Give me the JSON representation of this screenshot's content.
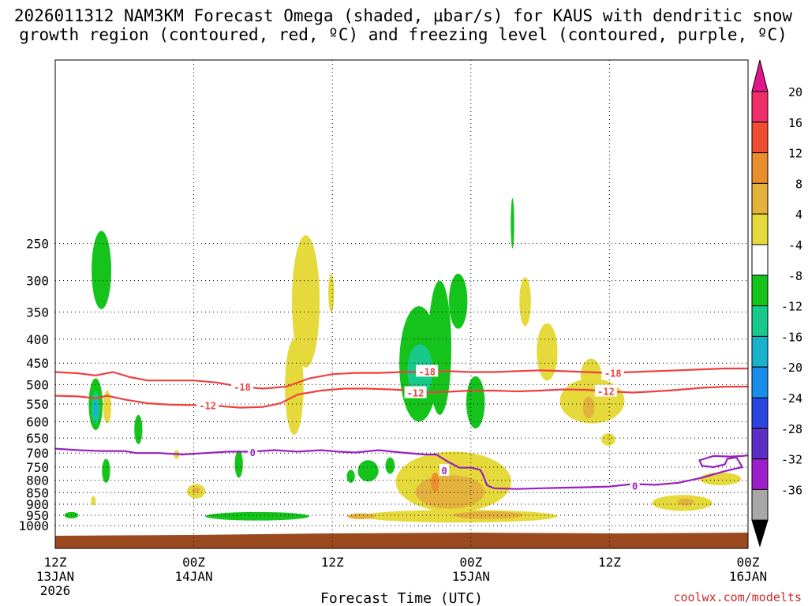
{
  "chart_data": {
    "type": "heatmap",
    "title": {
      "line1": "2026011312 NAM3KM Forecast Omega (shaded, μbar/s) for KAUS with dendritic snow",
      "line2": "growth region (contoured, red, ºC) and freezing level (contoured, purple, ºC)"
    },
    "xlabel": "Forecast Time (UTC)",
    "ylabel": "",
    "y_axis": {
      "scale": "pressure (hPa), inverted",
      "ticks": [
        250,
        300,
        350,
        400,
        450,
        500,
        550,
        600,
        650,
        700,
        750,
        800,
        850,
        900,
        950,
        1000
      ]
    },
    "x_axis": {
      "ticks": [
        {
          "hours": 0,
          "l1": "12Z",
          "l2": "13JAN",
          "l3": "2026"
        },
        {
          "hours": 12,
          "l1": "00Z",
          "l2": "14JAN",
          "l3": ""
        },
        {
          "hours": 24,
          "l1": "12Z",
          "l2": "",
          "l3": ""
        },
        {
          "hours": 36,
          "l1": "00Z",
          "l2": "15JAN",
          "l3": ""
        },
        {
          "hours": 48,
          "l1": "12Z",
          "l2": "",
          "l3": ""
        },
        {
          "hours": 60,
          "l1": "00Z",
          "l2": "16JAN",
          "l3": ""
        }
      ]
    },
    "colorbar": {
      "ticks": [
        "20",
        "16",
        "12",
        "8",
        "4",
        "-4",
        "-8",
        "-12",
        "-16",
        "-20",
        "-24",
        "-28",
        "-32",
        "-36"
      ],
      "bins": [
        {
          "color": "#ef2f6a"
        },
        {
          "color": "#f04e32"
        },
        {
          "color": "#ea8d2c"
        },
        {
          "color": "#e4b23c"
        },
        {
          "color": "#e5d93b"
        },
        {
          "color": "#ffffff"
        },
        {
          "color": "#14c41a"
        },
        {
          "color": "#17c98a"
        },
        {
          "color": "#17b3cc"
        },
        {
          "color": "#1a8de8"
        },
        {
          "color": "#2b45e0"
        },
        {
          "color": "#5b2fc4"
        },
        {
          "color": "#9d1fcc"
        },
        {
          "color": "#a8a8a8"
        }
      ],
      "top_arrow": "#e0178a",
      "bottom_arrow": "#000000"
    },
    "omega_regions": [
      {
        "level": "-4 to -8",
        "color": "#14c41a",
        "cx": 4.0,
        "cy": 290,
        "rx": 0.85,
        "ry": 55
      },
      {
        "level": "-4 to -8",
        "color": "#14c41a",
        "cx": 3.5,
        "cy": 555,
        "rx": 0.6,
        "ry": 70
      },
      {
        "level": "-8 to -12",
        "color": "#17c98a",
        "cx": 3.5,
        "cy": 562,
        "rx": 0.35,
        "ry": 45
      },
      {
        "level": "-12 to -16",
        "color": "#17b3cc",
        "cx": 3.5,
        "cy": 565,
        "rx": 0.2,
        "ry": 25
      },
      {
        "level": "-4 to -8",
        "color": "#14c41a",
        "cx": 4.4,
        "cy": 765,
        "rx": 0.35,
        "ry": 45
      },
      {
        "level": "-4 to -8",
        "color": "#14c41a",
        "cx": 1.4,
        "cy": 950,
        "rx": 0.6,
        "ry": 15
      },
      {
        "level": "-4 to -8",
        "color": "#14c41a",
        "cx": 7.2,
        "cy": 625,
        "rx": 0.35,
        "ry": 45
      },
      {
        "level": "-4 to -8",
        "color": "#14c41a",
        "cx": 15.9,
        "cy": 740,
        "rx": 0.35,
        "ry": 50
      },
      {
        "level": "-4 to -8",
        "color": "#14c41a",
        "cx": 17.5,
        "cy": 955,
        "rx": 4.5,
        "ry": 20
      },
      {
        "level": "-4 to -8",
        "color": "#14c41a",
        "cx": 25.6,
        "cy": 785,
        "rx": 0.35,
        "ry": 25
      },
      {
        "level": "-4 to -8",
        "color": "#14c41a",
        "cx": 27.1,
        "cy": 765,
        "rx": 0.9,
        "ry": 40
      },
      {
        "level": "-4 to -8",
        "color": "#14c41a",
        "cx": 29.0,
        "cy": 745,
        "rx": 0.4,
        "ry": 30
      },
      {
        "level": "-4 to -8",
        "color": "#14c41a",
        "cx": 31.5,
        "cy": 470,
        "rx": 1.7,
        "ry": 130
      },
      {
        "level": "-4 to -8",
        "color": "#14c41a",
        "cx": 33.3,
        "cy": 440,
        "rx": 1.0,
        "ry": 140
      },
      {
        "level": "-8 to -12",
        "color": "#17c98a",
        "cx": 31.6,
        "cy": 470,
        "rx": 1.1,
        "ry": 60
      },
      {
        "level": "-4 to -8",
        "color": "#14c41a",
        "cx": 34.9,
        "cy": 335,
        "rx": 0.8,
        "ry": 45
      },
      {
        "level": "-4 to -8",
        "color": "#14c41a",
        "cx": 36.4,
        "cy": 550,
        "rx": 0.8,
        "ry": 70
      },
      {
        "level": "-4 to -8",
        "color": "#14c41a",
        "cx": 39.6,
        "cy": 228,
        "rx": 0.15,
        "ry": 28
      },
      {
        "level": "4 to 8",
        "color": "#e5d93b",
        "cx": 4.5,
        "cy": 560,
        "rx": 0.35,
        "ry": 45
      },
      {
        "level": "4 to 8",
        "color": "#e5d93b",
        "cx": 10.5,
        "cy": 705,
        "rx": 0.25,
        "ry": 15
      },
      {
        "level": "4 to 8",
        "color": "#e5d93b",
        "cx": 12.2,
        "cy": 845,
        "rx": 0.8,
        "ry": 30
      },
      {
        "level": "4 to 8",
        "color": "#e5d93b",
        "cx": 3.3,
        "cy": 885,
        "rx": 0.2,
        "ry": 20
      },
      {
        "level": "4 to 8",
        "color": "#e5d93b",
        "cx": 21.7,
        "cy": 350,
        "rx": 1.2,
        "ry": 110
      },
      {
        "level": "4 to 8",
        "color": "#e5d93b",
        "cx": 20.7,
        "cy": 520,
        "rx": 0.8,
        "ry": 120
      },
      {
        "level": "4 to 8",
        "color": "#e5d93b",
        "cx": 23.9,
        "cy": 320,
        "rx": 0.25,
        "ry": 30
      },
      {
        "level": "4 to 8",
        "color": "#e5d93b",
        "cx": 34.5,
        "cy": 815,
        "rx": 5.0,
        "ry": 120
      },
      {
        "level": "4 to 8",
        "color": "#e5d93b",
        "cx": 35.0,
        "cy": 955,
        "rx": 8.5,
        "ry": 30
      },
      {
        "level": "4 to 8",
        "color": "#e5d93b",
        "cx": 40.7,
        "cy": 335,
        "rx": 0.5,
        "ry": 40
      },
      {
        "level": "4 to 8",
        "color": "#e5d93b",
        "cx": 42.6,
        "cy": 430,
        "rx": 0.9,
        "ry": 60
      },
      {
        "level": "4 to 8",
        "color": "#e5d93b",
        "cx": 46.4,
        "cy": 480,
        "rx": 0.9,
        "ry": 40
      },
      {
        "level": "4 to 8",
        "color": "#e5d93b",
        "cx": 46.5,
        "cy": 545,
        "rx": 2.8,
        "ry": 60
      },
      {
        "level": "4 to 8",
        "color": "#e5d93b",
        "cx": 47.9,
        "cy": 655,
        "rx": 0.6,
        "ry": 20
      },
      {
        "level": "4 to 8",
        "color": "#e5d93b",
        "cx": 54.3,
        "cy": 895,
        "rx": 2.6,
        "ry": 35
      },
      {
        "level": "4 to 8",
        "color": "#e5d93b",
        "cx": 57.6,
        "cy": 795,
        "rx": 1.8,
        "ry": 25
      },
      {
        "level": "8 to 12",
        "color": "#e4b23c",
        "cx": 34.2,
        "cy": 850,
        "rx": 3.0,
        "ry": 70
      },
      {
        "level": "8 to 12",
        "color": "#e4b23c",
        "cx": 37.5,
        "cy": 950,
        "rx": 3.0,
        "ry": 18
      },
      {
        "level": "8 to 12",
        "color": "#e4b23c",
        "cx": 26.5,
        "cy": 955,
        "rx": 1.2,
        "ry": 14
      },
      {
        "level": "8 to 12",
        "color": "#e4b23c",
        "cx": 12.2,
        "cy": 840,
        "rx": 0.35,
        "ry": 12
      },
      {
        "level": "8 to 12",
        "color": "#e4b23c",
        "cx": 46.2,
        "cy": 560,
        "rx": 0.5,
        "ry": 30
      },
      {
        "level": "8 to 12",
        "color": "#e4b23c",
        "cx": 54.6,
        "cy": 890,
        "rx": 0.7,
        "ry": 15
      },
      {
        "level": "12 to 16",
        "color": "#ea8d2c",
        "cx": 32.9,
        "cy": 810,
        "rx": 0.35,
        "ry": 40
      }
    ],
    "contours": [
      {
        "name": "-18",
        "color": "#ee4040",
        "points": [
          [
            0,
            470
          ],
          [
            2,
            473
          ],
          [
            3.5,
            478
          ],
          [
            5,
            470
          ],
          [
            6.5,
            482
          ],
          [
            8,
            490
          ],
          [
            10,
            490
          ],
          [
            12,
            490
          ],
          [
            14,
            495
          ],
          [
            16,
            505
          ],
          [
            18,
            510
          ],
          [
            20,
            505
          ],
          [
            22,
            485
          ],
          [
            24,
            475
          ],
          [
            26,
            472
          ],
          [
            28,
            472
          ],
          [
            30,
            470
          ],
          [
            32,
            470
          ],
          [
            34,
            468
          ],
          [
            36,
            470
          ],
          [
            38,
            470
          ],
          [
            40,
            468
          ],
          [
            42,
            466
          ],
          [
            44,
            468
          ],
          [
            46,
            470
          ],
          [
            48,
            472
          ],
          [
            50,
            470
          ],
          [
            52,
            468
          ],
          [
            54,
            466
          ],
          [
            56,
            464
          ],
          [
            58,
            462
          ],
          [
            60,
            462
          ]
        ],
        "labels": [
          {
            "x": 16.2,
            "y": 505,
            "text": "-18"
          },
          {
            "x": 32.2,
            "y": 468,
            "text": "-18"
          },
          {
            "x": 48.3,
            "y": 472,
            "text": "-18"
          }
        ]
      },
      {
        "name": "-12",
        "color": "#ee4040",
        "points": [
          [
            0,
            528
          ],
          [
            2,
            530
          ],
          [
            3.5,
            535
          ],
          [
            4.5,
            528
          ],
          [
            6,
            538
          ],
          [
            8,
            548
          ],
          [
            10,
            552
          ],
          [
            12,
            553
          ],
          [
            14,
            555
          ],
          [
            16,
            560
          ],
          [
            18,
            558
          ],
          [
            19.5,
            548
          ],
          [
            21,
            525
          ],
          [
            23,
            515
          ],
          [
            25,
            510
          ],
          [
            27,
            510
          ],
          [
            29,
            512
          ],
          [
            31,
            515
          ],
          [
            32,
            520
          ],
          [
            34,
            518
          ],
          [
            36,
            515
          ],
          [
            38,
            515
          ],
          [
            40,
            517
          ],
          [
            42,
            515
          ],
          [
            44,
            512
          ],
          [
            46,
            513
          ],
          [
            48,
            517
          ],
          [
            50,
            520
          ],
          [
            52,
            517
          ],
          [
            54,
            513
          ],
          [
            56,
            508
          ],
          [
            58,
            505
          ],
          [
            60,
            505
          ]
        ],
        "labels": [
          {
            "x": 13.2,
            "y": 553,
            "text": "-12"
          },
          {
            "x": 31.2,
            "y": 520,
            "text": "-12"
          },
          {
            "x": 47.7,
            "y": 516,
            "text": "-12"
          }
        ]
      },
      {
        "name": "0",
        "color": "#9a1fc0",
        "points": [
          [
            0,
            685
          ],
          [
            2,
            690
          ],
          [
            4,
            693
          ],
          [
            6,
            693
          ],
          [
            7,
            700
          ],
          [
            9,
            700
          ],
          [
            11,
            705
          ],
          [
            13,
            700
          ],
          [
            15,
            695
          ],
          [
            17,
            695
          ],
          [
            19,
            690
          ],
          [
            21,
            695
          ],
          [
            23,
            690
          ],
          [
            24.5,
            695
          ],
          [
            26,
            698
          ],
          [
            28,
            690
          ],
          [
            30,
            698
          ],
          [
            32,
            705
          ],
          [
            33,
            705
          ],
          [
            34,
            730
          ],
          [
            35,
            752
          ],
          [
            36,
            752
          ],
          [
            36.8,
            760
          ],
          [
            37,
            775
          ],
          [
            37.4,
            820
          ],
          [
            38,
            832
          ],
          [
            40,
            835
          ],
          [
            42,
            832
          ],
          [
            44,
            830
          ],
          [
            46,
            828
          ],
          [
            48,
            825
          ],
          [
            50,
            815
          ],
          [
            52,
            818
          ],
          [
            54,
            810
          ],
          [
            56,
            790
          ],
          [
            58,
            765
          ],
          [
            59.5,
            750
          ],
          [
            59,
            715
          ],
          [
            58.2,
            720
          ],
          [
            58,
            740
          ],
          [
            57,
            750
          ],
          [
            56,
            745
          ],
          [
            55.8,
            725
          ],
          [
            57,
            710
          ],
          [
            58.5,
            712
          ],
          [
            59.5,
            710
          ],
          [
            60,
            708
          ]
        ],
        "labels": [
          {
            "x": 17.1,
            "y": 697,
            "text": "0"
          },
          {
            "x": 33.7,
            "y": 762,
            "text": "0"
          },
          {
            "x": 50.2,
            "y": 822,
            "text": "0"
          }
        ]
      }
    ],
    "ground": {
      "color": "#9a4a1e"
    }
  },
  "credit": "coolwx.com/modelts"
}
